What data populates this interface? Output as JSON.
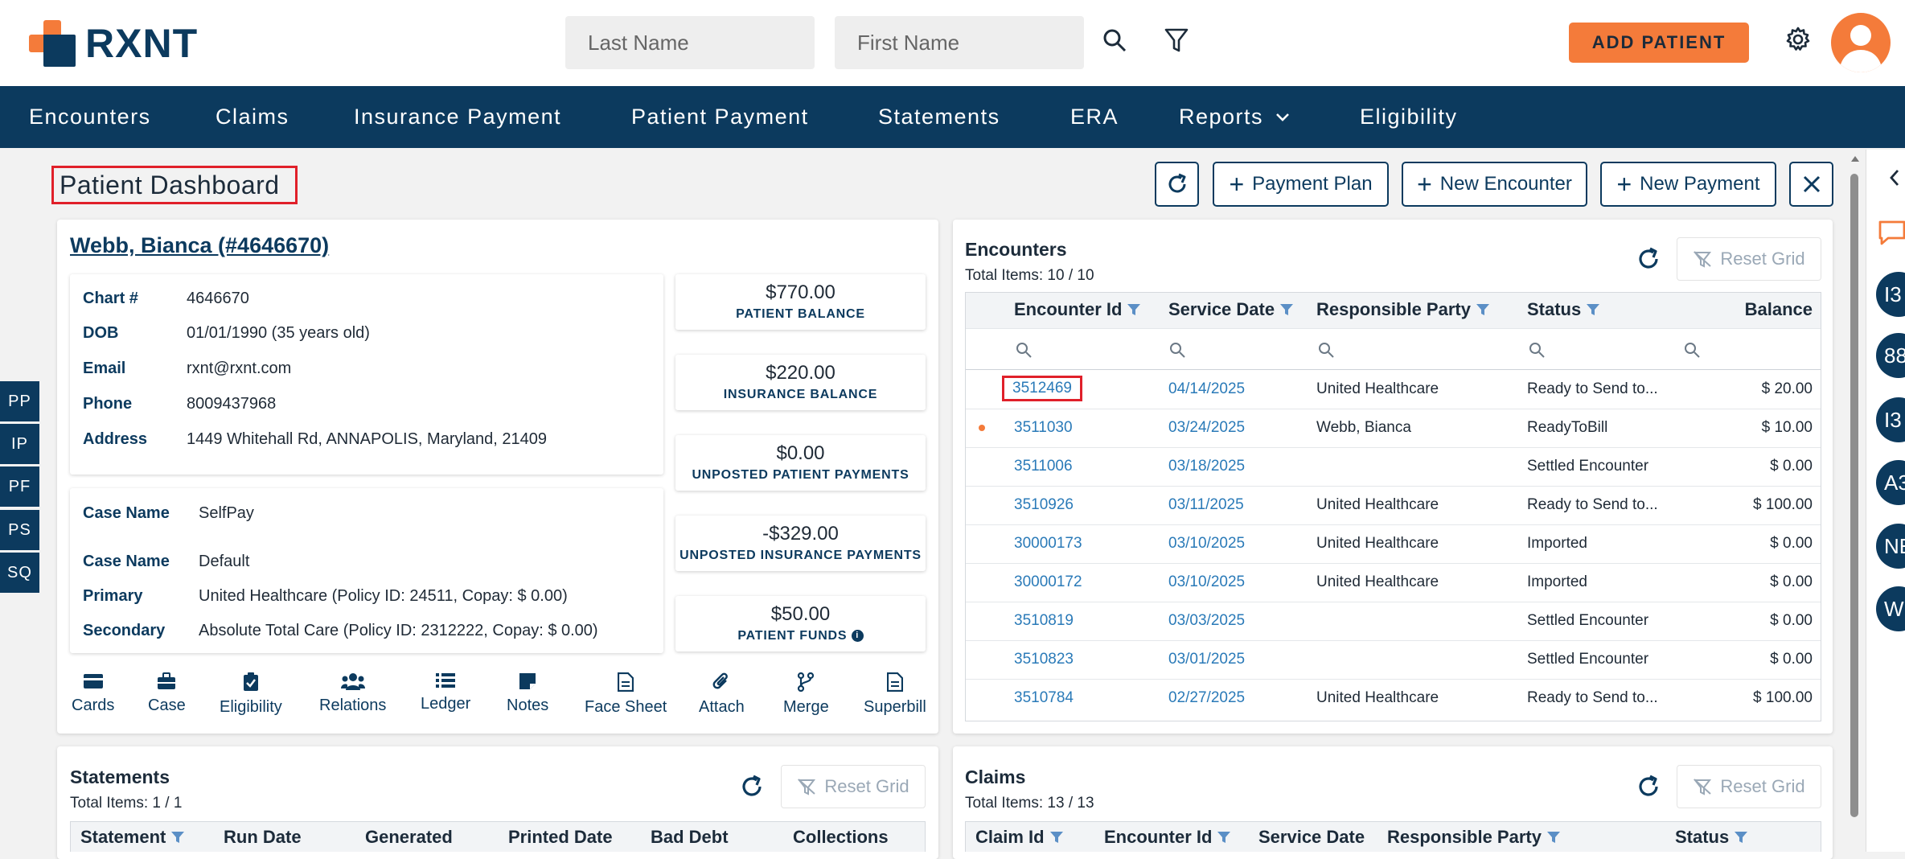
{
  "app": {
    "name": "RXNT"
  },
  "search": {
    "last_name_placeholder": "Last Name",
    "first_name_placeholder": "First Name"
  },
  "header": {
    "add_patient_label": "ADD PATIENT"
  },
  "nav": {
    "items": [
      "Encounters",
      "Claims",
      "Insurance Payment",
      "Patient Payment",
      "Statements",
      "ERA",
      "Reports",
      "Eligibility"
    ]
  },
  "page": {
    "title": "Patient Dashboard",
    "buttons": {
      "payment_plan": "Payment Plan",
      "new_encounter": "New Encounter",
      "new_payment": "New Payment"
    }
  },
  "side_tabs": [
    "PP",
    "IP",
    "PF",
    "PS",
    "SQ"
  ],
  "patient": {
    "name_link": "Webb, Bianca (#4646670)",
    "fields": [
      {
        "label": "Chart #",
        "value": "4646670"
      },
      {
        "label": "DOB",
        "value": "01/01/1990 (35 years old)"
      },
      {
        "label": "Email",
        "value": "rxnt@rxnt.com"
      },
      {
        "label": "Phone",
        "value": "8009437968"
      },
      {
        "label": "Address",
        "value": "1449 Whitehall Rd, ANNAPOLIS, Maryland, 21409"
      }
    ],
    "cases": [
      {
        "label": "Case Name",
        "value": "SelfPay"
      },
      {
        "label": "Case Name",
        "value": "Default"
      },
      {
        "label": "Primary",
        "value": "United Healthcare (Policy ID: 24511, Copay: $ 0.00)"
      },
      {
        "label": "Secondary",
        "value": "Absolute Total Care (Policy ID: 2312222, Copay: $ 0.00)"
      }
    ]
  },
  "balances": [
    {
      "amount": "$770.00",
      "label": "PATIENT BALANCE"
    },
    {
      "amount": "$220.00",
      "label": "INSURANCE BALANCE"
    },
    {
      "amount": "$0.00",
      "label": "UNPOSTED PATIENT PAYMENTS"
    },
    {
      "amount": "-$329.00",
      "label": "UNPOSTED INSURANCE PAYMENTS"
    },
    {
      "amount": "$50.00",
      "label": "PATIENT FUNDS"
    }
  ],
  "actions": [
    {
      "label": "Cards",
      "icon": "card-icon"
    },
    {
      "label": "Case",
      "icon": "briefcase-icon"
    },
    {
      "label": "Eligibility",
      "icon": "clipboard-check-icon"
    },
    {
      "label": "Relations",
      "icon": "users-icon"
    },
    {
      "label": "Ledger",
      "icon": "list-icon"
    },
    {
      "label": "Notes",
      "icon": "note-icon"
    },
    {
      "label": "Face Sheet",
      "icon": "document-icon"
    },
    {
      "label": "Attach",
      "icon": "paperclip-icon"
    },
    {
      "label": "Merge",
      "icon": "merge-icon"
    },
    {
      "label": "Superbill",
      "icon": "file-icon"
    }
  ],
  "encounters": {
    "title": "Encounters",
    "total": "Total Items: 10 / 10",
    "reset_label": "Reset Grid",
    "columns": [
      "Encounter Id",
      "Service Date",
      "Responsible Party",
      "Status",
      "Balance"
    ],
    "rows": [
      {
        "id": "3512469",
        "date": "04/14/2025",
        "party": "United Healthcare",
        "status": "Ready to Send to...",
        "balance": "$ 20.00"
      },
      {
        "id": "3511030",
        "date": "03/24/2025",
        "party": "Webb, Bianca",
        "status": "ReadyToBill",
        "balance": "$ 10.00"
      },
      {
        "id": "3511006",
        "date": "03/18/2025",
        "party": "",
        "status": "Settled Encounter",
        "balance": "$ 0.00"
      },
      {
        "id": "3510926",
        "date": "03/11/2025",
        "party": "United Healthcare",
        "status": "Ready to Send to...",
        "balance": "$ 100.00"
      },
      {
        "id": "30000173",
        "date": "03/10/2025",
        "party": "United Healthcare",
        "status": "Imported",
        "balance": "$ 0.00"
      },
      {
        "id": "30000172",
        "date": "03/10/2025",
        "party": "United Healthcare",
        "status": "Imported",
        "balance": "$ 0.00"
      },
      {
        "id": "3510819",
        "date": "03/03/2025",
        "party": "",
        "status": "Settled Encounter",
        "balance": "$ 0.00"
      },
      {
        "id": "3510823",
        "date": "03/01/2025",
        "party": "",
        "status": "Settled Encounter",
        "balance": "$ 0.00"
      },
      {
        "id": "3510784",
        "date": "02/27/2025",
        "party": "United Healthcare",
        "status": "Ready to Send to...",
        "balance": "$ 100.00"
      }
    ]
  },
  "statements": {
    "title": "Statements",
    "total": "Total Items: 1 / 1",
    "reset_label": "Reset Grid",
    "columns": [
      "Statement",
      "Run Date",
      "Generated",
      "Printed Date",
      "Bad Debt",
      "Collections"
    ]
  },
  "claims": {
    "title": "Claims",
    "total": "Total Items: 13 / 13",
    "reset_label": "Reset Grid",
    "columns": [
      "Claim Id",
      "Encounter Id",
      "Service Date",
      "Responsible Party",
      "Status"
    ]
  },
  "right_rail": {
    "circles": [
      "I3",
      "88",
      "I3",
      "A3",
      "NE",
      "W"
    ]
  },
  "colors": {
    "brand_navy": "#0c3a5e",
    "brand_orange": "#f47b3a",
    "highlight_red": "#e0202a",
    "link_blue": "#2a7ab8"
  }
}
